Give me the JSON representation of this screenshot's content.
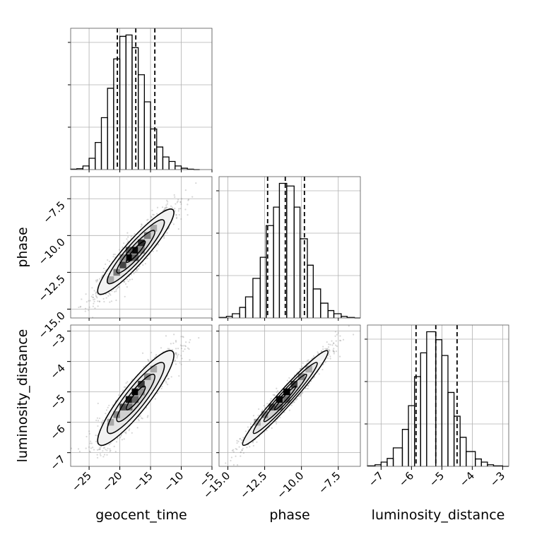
{
  "chart_data": {
    "type": "corner",
    "parameters": [
      "geocent_time",
      "phase",
      "luminosity_distance"
    ],
    "ranges": {
      "geocent_time": [
        -28.0,
        -5.0
      ],
      "phase": [
        -15.6,
        -6.0
      ],
      "luminosity_distance": [
        -7.45,
        -2.8
      ]
    },
    "ticks": {
      "geocent_time": [
        -25,
        -20,
        -15,
        -10,
        -5
      ],
      "phase": [
        -15.0,
        -12.5,
        -10.0,
        -7.5
      ],
      "luminosity_distance": [
        -7,
        -6,
        -5,
        -4,
        -3
      ]
    },
    "tick_labels": {
      "geocent_time": [
        "−25",
        "−20",
        "−15",
        "−10",
        "−5"
      ],
      "phase": [
        "−15.0",
        "−12.5",
        "−10.0",
        "−7.5"
      ],
      "luminosity_distance": [
        "−7",
        "−6",
        "−5",
        "−4",
        "−3"
      ]
    },
    "quantiles": {
      "geocent_time": [
        -20.4,
        -17.4,
        -14.3
      ],
      "phase": [
        -12.3,
        -11.1,
        -9.8
      ],
      "luminosity_distance": [
        -5.85,
        -5.2,
        -4.5
      ]
    },
    "histograms": {
      "geocent_time": {
        "bin_edges": [
          -28.0,
          -27.0,
          -26.0,
          -25.0,
          -24.0,
          -23.0,
          -22.0,
          -21.0,
          -20.0,
          -19.0,
          -18.0,
          -17.0,
          -16.0,
          -15.0,
          -14.0,
          -13.0,
          -12.0,
          -11.0,
          -10.0,
          -9.0,
          -8.0,
          -7.0
        ],
        "counts": [
          1,
          2,
          8,
          25,
          60,
          115,
          180,
          245,
          295,
          298,
          270,
          210,
          150,
          90,
          50,
          28,
          18,
          8,
          3,
          1,
          0
        ]
      },
      "phase": {
        "bin_edges": [
          -15.6,
          -15.1,
          -14.7,
          -14.2,
          -13.8,
          -13.3,
          -12.8,
          -12.4,
          -11.9,
          -11.5,
          -11.0,
          -10.5,
          -10.1,
          -9.6,
          -9.2,
          -8.7,
          -8.2,
          -7.8,
          -7.3,
          -6.9,
          -6.4,
          -6.0
        ],
        "counts": [
          1,
          3,
          8,
          20,
          40,
          75,
          115,
          175,
          210,
          255,
          250,
          210,
          150,
          100,
          55,
          28,
          14,
          8,
          3,
          1,
          0
        ]
      },
      "luminosity_distance": {
        "bin_edges": [
          -7.45,
          -7.2,
          -7.0,
          -6.8,
          -6.6,
          -6.3,
          -6.1,
          -5.9,
          -5.7,
          -5.5,
          -5.2,
          -5.0,
          -4.8,
          -4.6,
          -4.4,
          -4.2,
          -3.9,
          -3.7,
          -3.5,
          -3.3,
          -3.0,
          -2.8
        ],
        "counts": [
          1,
          3,
          8,
          15,
          35,
          70,
          115,
          170,
          215,
          255,
          240,
          210,
          140,
          95,
          55,
          28,
          14,
          8,
          3,
          1,
          0
        ]
      }
    },
    "pairs": [
      {
        "x": "geocent_time",
        "y": "phase",
        "mean": [
          -17.4,
          -11.1
        ],
        "std": [
          3.1,
          1.45
        ],
        "corr": 0.92,
        "density_cells": [
          {
            "x": -18.5,
            "y": -11.5,
            "level": 1.0
          },
          {
            "x": -17.5,
            "y": -11.0,
            "level": 0.95
          },
          {
            "x": -16.5,
            "y": -10.5,
            "level": 0.8
          },
          {
            "x": -19.5,
            "y": -12.0,
            "level": 0.7
          },
          {
            "x": -18.5,
            "y": -11.0,
            "level": 0.6
          },
          {
            "x": -17.5,
            "y": -11.5,
            "level": 0.55
          },
          {
            "x": -20.5,
            "y": -12.5,
            "level": 0.45
          },
          {
            "x": -15.5,
            "y": -10.0,
            "level": 0.45
          },
          {
            "x": -16.5,
            "y": -11.0,
            "level": 0.4
          },
          {
            "x": -19.5,
            "y": -11.5,
            "level": 0.35
          },
          {
            "x": -21.5,
            "y": -13.0,
            "level": 0.25
          },
          {
            "x": -14.5,
            "y": -9.5,
            "level": 0.25
          }
        ]
      },
      {
        "x": "geocent_time",
        "y": "luminosity_distance",
        "mean": [
          -17.4,
          -5.2
        ],
        "std": [
          3.1,
          0.78
        ],
        "corr": 0.9,
        "density_cells": [
          {
            "x": -17.5,
            "y": -5.0,
            "level": 1.0
          },
          {
            "x": -18.5,
            "y": -5.25,
            "level": 0.9
          },
          {
            "x": -16.5,
            "y": -4.75,
            "level": 0.75
          },
          {
            "x": -19.5,
            "y": -5.5,
            "level": 0.65
          },
          {
            "x": -17.5,
            "y": -5.25,
            "level": 0.55
          },
          {
            "x": -18.5,
            "y": -5.5,
            "level": 0.5
          },
          {
            "x": -20.5,
            "y": -5.75,
            "level": 0.4
          },
          {
            "x": -15.5,
            "y": -4.5,
            "level": 0.4
          },
          {
            "x": -16.5,
            "y": -5.0,
            "level": 0.35
          },
          {
            "x": -21.5,
            "y": -6.0,
            "level": 0.25
          },
          {
            "x": -14.5,
            "y": -4.25,
            "level": 0.25
          }
        ]
      },
      {
        "x": "phase",
        "y": "luminosity_distance",
        "mean": [
          -11.1,
          -5.2
        ],
        "std": [
          1.45,
          0.78
        ],
        "corr": 0.97,
        "density_cells": [
          {
            "x": -11.0,
            "y": -5.0,
            "level": 1.0
          },
          {
            "x": -11.5,
            "y": -5.25,
            "level": 0.95
          },
          {
            "x": -10.5,
            "y": -4.75,
            "level": 0.7
          },
          {
            "x": -12.0,
            "y": -5.5,
            "level": 0.65
          },
          {
            "x": -11.0,
            "y": -5.25,
            "level": 0.5
          },
          {
            "x": -11.5,
            "y": -5.5,
            "level": 0.45
          },
          {
            "x": -12.5,
            "y": -5.75,
            "level": 0.4
          },
          {
            "x": -10.0,
            "y": -4.5,
            "level": 0.4
          },
          {
            "x": -13.0,
            "y": -6.0,
            "level": 0.25
          },
          {
            "x": -9.5,
            "y": -4.25,
            "level": 0.25
          }
        ]
      }
    ],
    "contour_levels_sigma": [
      0.5,
      1.0,
      1.5,
      2.0
    ],
    "grid": true,
    "colors": {
      "line": "#000000",
      "grid": "#b0b0b0",
      "scatter": "#8c8c8c"
    }
  }
}
